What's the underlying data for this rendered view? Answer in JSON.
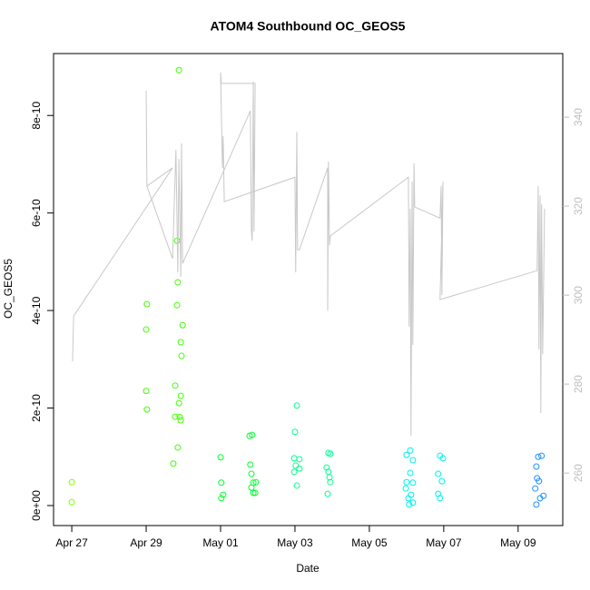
{
  "chart_data": {
    "type": "scatter",
    "title": "ATOM4 Southbound OC_GEOS5",
    "xlabel": "Date",
    "ylabel": "OC_GEOS5",
    "xlim": [
      -0.49,
      13.2
    ],
    "xticks": [
      {
        "value": 0,
        "label": "Apr 27"
      },
      {
        "value": 2,
        "label": "Apr 29"
      },
      {
        "value": 4,
        "label": "May 01"
      },
      {
        "value": 6,
        "label": "May 03"
      },
      {
        "value": 8,
        "label": "May 05"
      },
      {
        "value": 10,
        "label": "May 07"
      },
      {
        "value": 12,
        "label": "May 09"
      }
    ],
    "ylim": [
      -4.1e-11,
      9.27e-10
    ],
    "yticks": [
      {
        "value": 0,
        "label": "0e+00"
      },
      {
        "value": 2e-10,
        "label": "2e-10"
      },
      {
        "value": 4e-10,
        "label": "4e-10"
      },
      {
        "value": 6e-10,
        "label": "6e-10"
      },
      {
        "value": 8e-10,
        "label": "8e-10"
      }
    ],
    "y2lim": [
      248.2,
      354.3
    ],
    "y2ticks": [
      260,
      280,
      300,
      320,
      340
    ],
    "y2color": "#bebebe",
    "series": [
      {
        "type": "scatter",
        "color": "#80ff00",
        "x": [
          0,
          0
        ],
        "values": [
          4.8e-11,
          7e-12
        ]
      },
      {
        "type": "scatter",
        "color": "#40ff00",
        "x": [
          2.02,
          2.0,
          2.0,
          2.02,
          2.88,
          2.83,
          2.83,
          2.85,
          2.98,
          2.93,
          2.95,
          2.78,
          2.93,
          2.88,
          2.78,
          2.9,
          2.93,
          2.85,
          2.73
        ],
        "values": [
          4.13e-10,
          3.61e-10,
          2.35e-10,
          1.97e-10,
          8.93e-10,
          5.43e-10,
          4.11e-10,
          4.58e-10,
          3.7e-10,
          3.35e-10,
          3.07e-10,
          2.46e-10,
          2.25e-10,
          2.1e-10,
          1.82e-10,
          1.82e-10,
          1.75e-10,
          1.19e-10,
          8.6e-11
        ]
      },
      {
        "type": "scatter",
        "color": "#00ff30",
        "x": [
          4.0,
          4.02,
          4.07,
          4.02,
          4.78,
          4.85,
          4.8,
          4.83,
          4.88,
          4.95,
          4.83,
          4.88,
          4.93
        ],
        "values": [
          9.9e-11,
          4.7e-11,
          2.2e-11,
          1.5e-11,
          1.43e-10,
          1.45e-10,
          8.4e-11,
          6.5e-11,
          4.7e-11,
          4.8e-11,
          3.7e-11,
          2.6e-11,
          2.6e-11
        ]
      },
      {
        "type": "scatter",
        "color": "#00ff90",
        "x": [
          6.05,
          6.0,
          5.98,
          6.12,
          5.98,
          6.02,
          6.12,
          6.05,
          6.9,
          6.95,
          6.85,
          6.9,
          6.93,
          6.95,
          6.88
        ],
        "values": [
          2.05e-10,
          1.51e-10,
          9.7e-11,
          9.5e-11,
          6.9e-11,
          8.2e-11,
          7.6e-11,
          4.1e-11,
          1.08e-10,
          1.06e-10,
          7.8e-11,
          6.9e-11,
          5.8e-11,
          4.8e-11,
          2.4e-11
        ]
      },
      {
        "type": "scatter",
        "color": "#00f0f0",
        "x": [
          9.1,
          9.0,
          9.17,
          9.1,
          9.0,
          9.17,
          8.98,
          9.12,
          9.05,
          9.17,
          9.07,
          9.9,
          9.98,
          9.85,
          9.95,
          9.85,
          9.9
        ],
        "values": [
          1.13e-10,
          1.04e-10,
          9.3e-11,
          6.7e-11,
          4.8e-11,
          4.7e-11,
          3.5e-11,
          2.2e-11,
          1.5e-11,
          6e-12,
          2e-12,
          1.02e-10,
          9.7e-11,
          6.5e-11,
          5e-11,
          2.4e-11,
          1.5e-11
        ]
      },
      {
        "type": "scatter",
        "color": "#1e90ff",
        "x": [
          12.63,
          12.54,
          12.49,
          12.51,
          12.56,
          12.46,
          12.68,
          12.59,
          12.49
        ],
        "values": [
          1.02e-10,
          1e-10,
          8e-11,
          5.6e-11,
          5e-11,
          3.5e-11,
          2e-11,
          1.5e-11,
          2e-12
        ]
      },
      {
        "type": "line",
        "axis": "y2",
        "color": "#c8c8c8",
        "x": [
          0.02,
          0.05,
          2.71,
          2.02,
          2.0,
          2.02,
          2.71,
          2.8,
          2.85,
          2.88,
          2.93,
          2.95,
          2.98,
          4.8,
          4.83,
          4.85,
          4.88,
          4.9,
          4.93,
          4.02,
          4.0,
          4.05,
          4.07,
          4.1,
          6.0,
          6.02,
          6.05,
          6.07,
          6.12,
          6.88,
          6.88,
          6.9,
          6.93,
          6.95,
          9.05,
          9.07,
          9.1,
          9.12,
          9.15,
          9.17,
          9.2,
          9.22,
          9.9,
          9.93,
          9.95,
          9.98,
          9.9,
          12.51,
          12.54,
          12.56,
          12.59,
          12.61,
          12.63,
          12.66,
          12.71
        ],
        "values": [
          285.1,
          295.3,
          328.6,
          324.5,
          345.9,
          324.5,
          308.2,
          332.7,
          305.1,
          330.6,
          304.1,
          334.1,
          307.1,
          341.4,
          314.3,
          312.2,
          348.0,
          314.3,
          347.6,
          347.6,
          350.0,
          328.6,
          335.7,
          321.0,
          326.5,
          305.1,
          336.7,
          310.2,
          310.2,
          328.6,
          296.5,
          330.0,
          311.2,
          313.3,
          326.5,
          292.9,
          319.4,
          268.4,
          325.5,
          288.8,
          329.6,
          319.8,
          317.3,
          324.5,
          300.0,
          325.5,
          299.0,
          305.5,
          324.5,
          287.8,
          322.4,
          273.5,
          320.4,
          286.7,
          319.4
        ]
      }
    ]
  }
}
